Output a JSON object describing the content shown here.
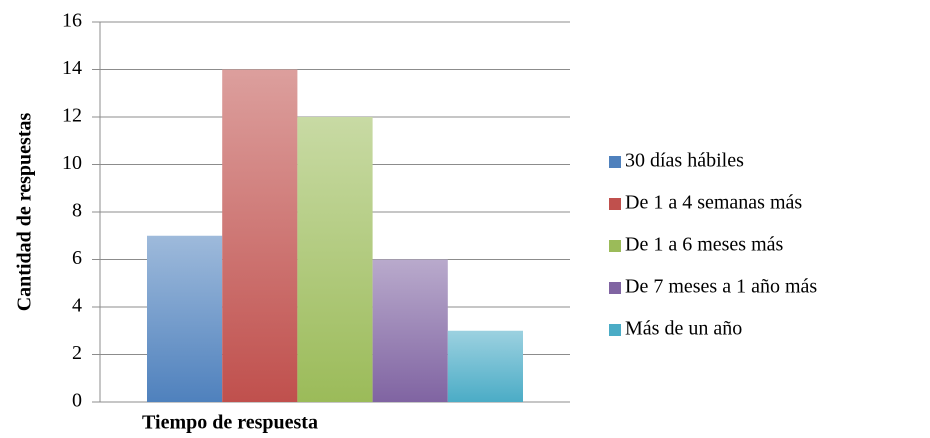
{
  "chart_data": {
    "type": "bar",
    "x_label": "Tiempo de respuesta",
    "y_label": "Cantidad de respuestas",
    "categories": [
      null
    ],
    "series": [
      {
        "name": "30 días hábiles",
        "color": "#4f81bd",
        "values": [
          7
        ]
      },
      {
        "name": "De 1 a 4 semanas más",
        "color": "#c0504d",
        "values": [
          14
        ]
      },
      {
        "name": "De 1 a 6 meses más",
        "color": "#9bbb59",
        "values": [
          12
        ]
      },
      {
        "name": "De 7 meses a 1 año más",
        "color": "#8064a2",
        "values": [
          6
        ]
      },
      {
        "name": "Más de un año",
        "color": "#4bacc6",
        "values": [
          3
        ]
      }
    ],
    "ylim": [
      0,
      16
    ],
    "yticks": [
      0,
      2,
      4,
      6,
      8,
      10,
      12,
      14,
      16
    ],
    "grid": true,
    "legend": "right"
  }
}
